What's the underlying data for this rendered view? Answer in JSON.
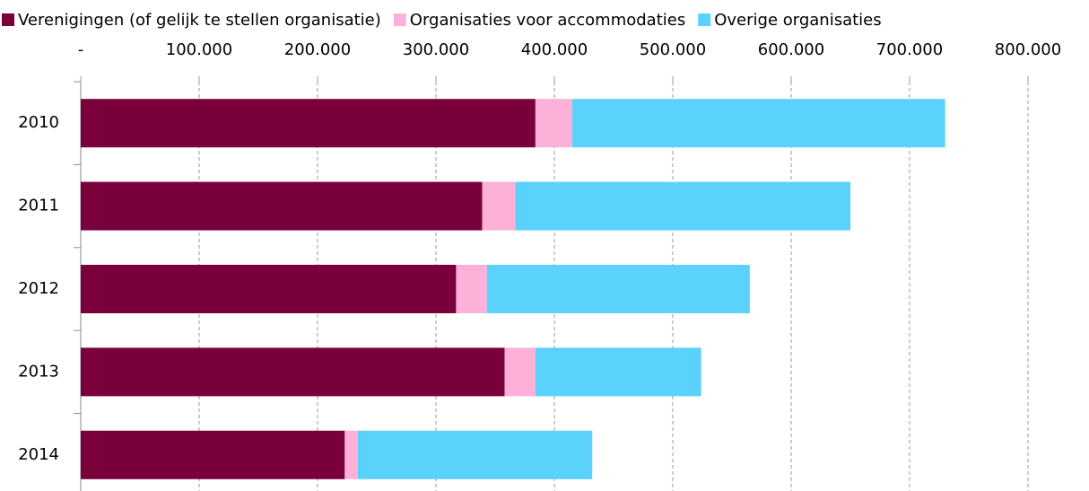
{
  "chart_data": {
    "type": "stacked-bar-horizontal",
    "categories": [
      "2010",
      "2011",
      "2012",
      "2013",
      "2014"
    ],
    "series": [
      {
        "name": "Verenigingen (of gelijk te stellen organisatie)",
        "color": "#7a003c",
        "values": [
          384000,
          339000,
          317000,
          358000,
          223000
        ]
      },
      {
        "name": "Organisaties voor accommodaties",
        "color": "#fdb1d9",
        "values": [
          31000,
          28000,
          26000,
          26000,
          11000
        ]
      },
      {
        "name": "Overige organisaties",
        "color": "#5bd2fb",
        "values": [
          315000,
          283000,
          222000,
          140000,
          198000
        ]
      }
    ],
    "xlim": [
      0,
      800000
    ],
    "xticks": [
      {
        "value": 0,
        "label": "-"
      },
      {
        "value": 100000,
        "label": "100.000"
      },
      {
        "value": 200000,
        "label": "200.000"
      },
      {
        "value": 300000,
        "label": "300.000"
      },
      {
        "value": 400000,
        "label": "400.000"
      },
      {
        "value": 500000,
        "label": "500.000"
      },
      {
        "value": 600000,
        "label": "600.000"
      },
      {
        "value": 700000,
        "label": "700.000"
      },
      {
        "value": 800000,
        "label": "800.000"
      }
    ],
    "grid": true,
    "legend": "top"
  }
}
